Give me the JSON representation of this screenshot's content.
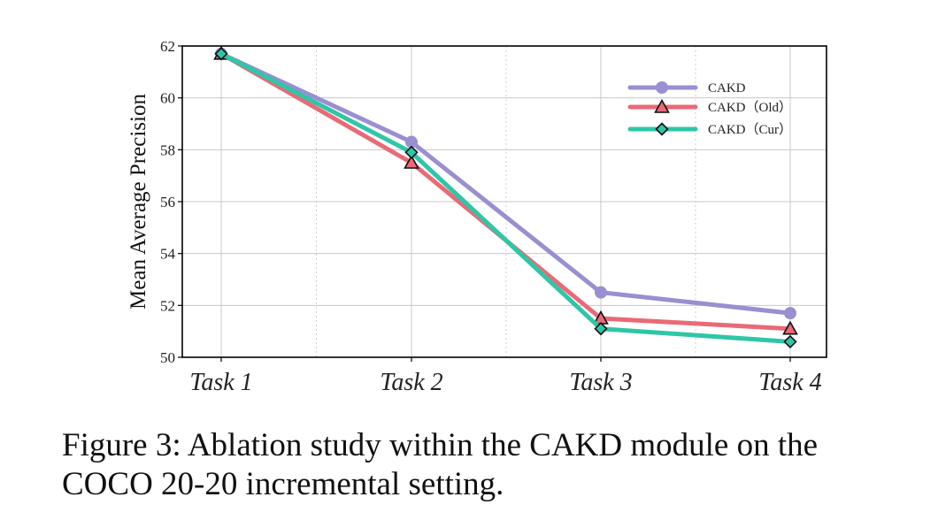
{
  "chart_data": {
    "type": "line",
    "title": "",
    "xlabel": "",
    "ylabel": "Mean Average Precision",
    "categories": [
      "Task 1",
      "Task 2",
      "Task 3",
      "Task 4"
    ],
    "ylim": [
      50,
      62
    ],
    "yticks": [
      50,
      52,
      54,
      56,
      58,
      60,
      62
    ],
    "grid": true,
    "legend_position": "top-right",
    "series": [
      {
        "name": "CAKD",
        "marker": "circle",
        "color": "#9b8ed1",
        "values": [
          61.7,
          58.3,
          52.5,
          51.7
        ]
      },
      {
        "name": "CAKD（Old）",
        "marker": "triangle",
        "color": "#e96a77",
        "values": [
          61.7,
          57.5,
          51.5,
          51.1
        ]
      },
      {
        "name": "CAKD（Cur）",
        "marker": "diamond",
        "color": "#2fc6a8",
        "values": [
          61.7,
          57.9,
          51.1,
          50.6
        ]
      }
    ]
  },
  "caption": {
    "text": "Figure 3: Ablation study within the CAKD module on the COCO 20-20 incremental setting."
  }
}
